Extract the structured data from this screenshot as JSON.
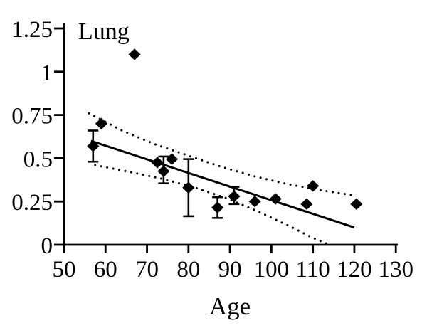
{
  "figure": {
    "background": "#ffffff",
    "ink": "#000000"
  },
  "chart_data": {
    "type": "scatter",
    "title": "Lung",
    "xlabel": "Age",
    "ylabel": "",
    "xlim": [
      50,
      130
    ],
    "ylim": [
      0,
      1.25
    ],
    "x_ticks": [
      50,
      60,
      70,
      80,
      90,
      100,
      110,
      120,
      130
    ],
    "y_ticks": [
      0,
      0.25,
      0.5,
      0.75,
      1,
      1.25
    ],
    "y_tick_labels": [
      "0",
      "0.25",
      "0.5",
      "0.75",
      "1",
      "1.25"
    ],
    "grid": false,
    "legend": false,
    "marker": "filled-diamond",
    "points": [
      {
        "x": 57,
        "y": 0.57,
        "err_lo": 0.48,
        "err_hi": 0.66
      },
      {
        "x": 59,
        "y": 0.7
      },
      {
        "x": 67,
        "y": 1.1
      },
      {
        "x": 72.5,
        "y": 0.475
      },
      {
        "x": 74,
        "y": 0.425,
        "err_lo": 0.355,
        "err_hi": 0.51
      },
      {
        "x": 76,
        "y": 0.495
      },
      {
        "x": 80,
        "y": 0.33,
        "err_lo": 0.165,
        "err_hi": 0.495
      },
      {
        "x": 87,
        "y": 0.215,
        "err_lo": 0.155,
        "err_hi": 0.275
      },
      {
        "x": 91,
        "y": 0.28,
        "err_lo": 0.235,
        "err_hi": 0.335
      },
      {
        "x": 96,
        "y": 0.25
      },
      {
        "x": 101,
        "y": 0.265
      },
      {
        "x": 108.5,
        "y": 0.235
      },
      {
        "x": 110,
        "y": 0.34
      },
      {
        "x": 120.5,
        "y": 0.235
      }
    ],
    "fit_line": {
      "x1": 56.5,
      "y1": 0.6,
      "x2": 120,
      "y2": 0.1
    },
    "confidence_bands": {
      "style": "dotted",
      "upper": [
        [
          56,
          0.76
        ],
        [
          64,
          0.66
        ],
        [
          72,
          0.58
        ],
        [
          80,
          0.515
        ],
        [
          88,
          0.45
        ],
        [
          96,
          0.395
        ],
        [
          104,
          0.35
        ],
        [
          112,
          0.315
        ],
        [
          120,
          0.285
        ]
      ],
      "lower": [
        [
          57.5,
          0.46
        ],
        [
          65,
          0.425
        ],
        [
          73,
          0.385
        ],
        [
          81,
          0.335
        ],
        [
          89,
          0.27
        ],
        [
          97,
          0.19
        ],
        [
          105,
          0.1
        ],
        [
          110,
          0.04
        ],
        [
          114,
          0
        ]
      ]
    }
  }
}
